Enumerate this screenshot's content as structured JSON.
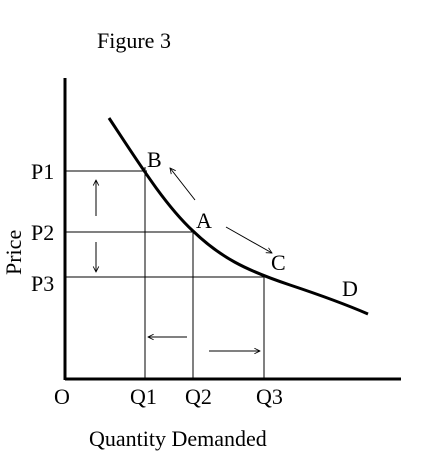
{
  "title": "Figure 3",
  "axes": {
    "x_label": "Quantity Demanded",
    "y_label": "Price",
    "origin_label": "O"
  },
  "price_levels": [
    "P1",
    "P2",
    "P3"
  ],
  "quantity_levels": [
    "Q1",
    "Q2",
    "Q3"
  ],
  "points": {
    "b": "B",
    "a": "A",
    "c": "C",
    "d": "D"
  },
  "colors": {
    "ink": "#000000",
    "background": "#ffffff"
  }
}
